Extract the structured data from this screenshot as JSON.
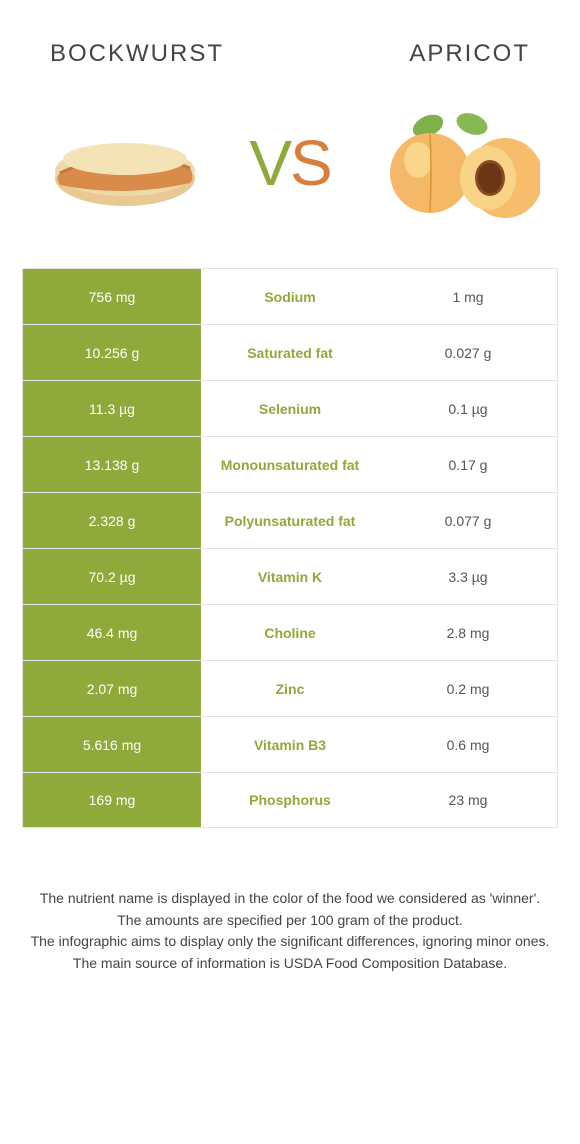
{
  "left_food": "BOCKWURST",
  "right_food": "APRICOT",
  "vs_left_letter": "V",
  "vs_right_letter": "S",
  "colors": {
    "left_winner_bg": "#8fa93a",
    "right_winner_bg": "#d97f3d",
    "text": "#444444",
    "border": "#e5e5e5"
  },
  "rows": [
    {
      "nutrient": "Sodium",
      "left": "756 mg",
      "right": "1 mg",
      "winner": "left"
    },
    {
      "nutrient": "Saturated fat",
      "left": "10.256 g",
      "right": "0.027 g",
      "winner": "left"
    },
    {
      "nutrient": "Selenium",
      "left": "11.3 µg",
      "right": "0.1 µg",
      "winner": "left"
    },
    {
      "nutrient": "Monounsaturated fat",
      "left": "13.138 g",
      "right": "0.17 g",
      "winner": "left"
    },
    {
      "nutrient": "Polyunsaturated fat",
      "left": "2.328 g",
      "right": "0.077 g",
      "winner": "left"
    },
    {
      "nutrient": "Vitamin K",
      "left": "70.2 µg",
      "right": "3.3 µg",
      "winner": "left"
    },
    {
      "nutrient": "Choline",
      "left": "46.4 mg",
      "right": "2.8 mg",
      "winner": "left"
    },
    {
      "nutrient": "Zinc",
      "left": "2.07 mg",
      "right": "0.2 mg",
      "winner": "left"
    },
    {
      "nutrient": "Vitamin B3",
      "left": "5.616 mg",
      "right": "0.6 mg",
      "winner": "left"
    },
    {
      "nutrient": "Phosphorus",
      "left": "169 mg",
      "right": "23 mg",
      "winner": "left"
    }
  ],
  "footer_lines": [
    "The nutrient name is displayed in the color of the food we considered as 'winner'.",
    "The amounts are specified per 100 gram of the product.",
    "The infographic aims to display only the significant differences, ignoring minor ones.",
    "The main source of information is USDA Food Composition Database."
  ]
}
